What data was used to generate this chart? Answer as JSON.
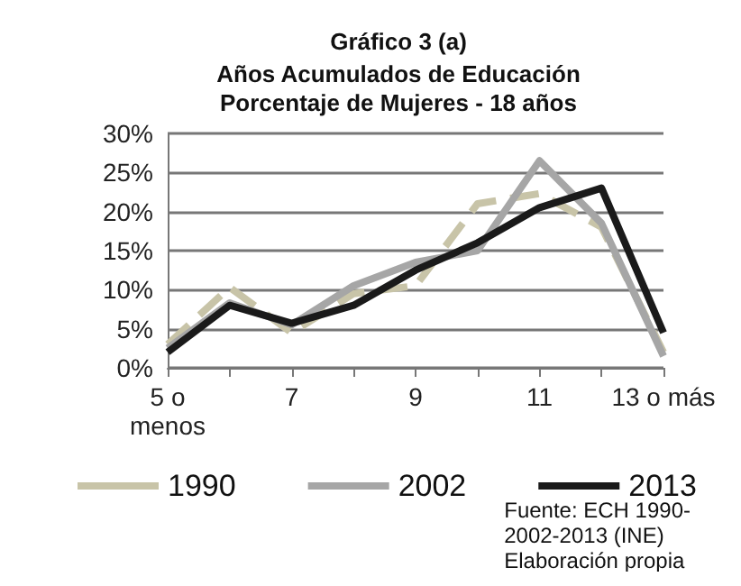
{
  "chart_data": {
    "type": "line",
    "title": "Gráfico 3 (a)",
    "subtitle": "Años Acumulados de Educación\nPorcentaje de Mujeres - 18 años",
    "categories": [
      "5 o\nmenos",
      null,
      "7",
      null,
      "9",
      null,
      "11",
      null,
      "13 o más"
    ],
    "series": [
      {
        "name": "1990",
        "color": "#c8c4a8",
        "line_style": "dashed",
        "values": [
          3,
          10.3,
          4.5,
          9.5,
          10.5,
          21,
          22.3,
          18,
          2
        ]
      },
      {
        "name": "2002",
        "color": "#a6a6a6",
        "line_style": "solid",
        "values": [
          2.5,
          8.3,
          5.5,
          10.5,
          13.5,
          15,
          26.5,
          18.5,
          1.5
        ]
      },
      {
        "name": "2013",
        "color": "#1a1a1a",
        "line_style": "solid",
        "values": [
          2,
          8,
          5.7,
          8,
          12.5,
          16,
          20.5,
          23,
          4.5
        ]
      }
    ],
    "ylim": [
      0,
      30
    ],
    "yticks": [
      {
        "value": 0,
        "label": "0%"
      },
      {
        "value": 5,
        "label": "5%"
      },
      {
        "value": 10,
        "label": "10%"
      },
      {
        "value": 15,
        "label": "15%"
      },
      {
        "value": 20,
        "label": "20%"
      },
      {
        "value": 25,
        "label": "25%"
      },
      {
        "value": 30,
        "label": "30%"
      }
    ],
    "grid": "y",
    "legend": "bottom",
    "marker": "none",
    "annotations": [
      "Fuente: ECH 1990-\n2002-2013 (INE)\nElaboración propia"
    ]
  }
}
